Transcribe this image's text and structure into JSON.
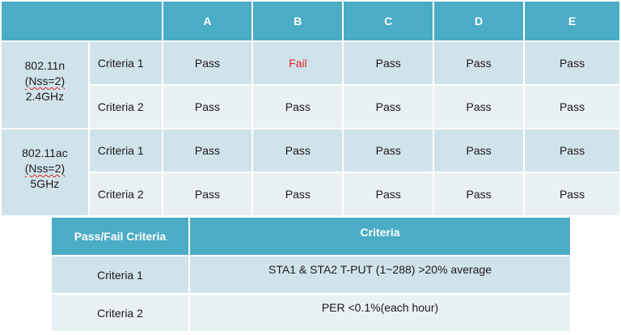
{
  "results": {
    "columns": [
      "A",
      "B",
      "C",
      "D",
      "E"
    ],
    "standards": [
      {
        "lines": [
          "802.11n",
          "(Nss=2)",
          "2.4GHz"
        ],
        "rows": [
          {
            "criteria": "Criteria 1",
            "values": [
              "Pass",
              "Fail",
              "Pass",
              "Pass",
              "Pass"
            ]
          },
          {
            "criteria": "Criteria 2",
            "values": [
              "Pass",
              "Pass",
              "Pass",
              "Pass",
              "Pass"
            ]
          }
        ]
      },
      {
        "lines": [
          "802.11ac",
          "(Nss=2)",
          "5GHz"
        ],
        "rows": [
          {
            "criteria": "Criteria 1",
            "values": [
              "Pass",
              "Pass",
              "Pass",
              "Pass",
              "Pass"
            ]
          },
          {
            "criteria": "Criteria 2",
            "values": [
              "Pass",
              "Pass",
              "Pass",
              "Pass",
              "Pass"
            ]
          }
        ]
      }
    ]
  },
  "criteria_table": {
    "header_left": "Pass/Fail Criteria",
    "header_right": "Criteria",
    "rows": [
      {
        "name": "Criteria 1",
        "description": "STA1 & STA2  T-PUT  (1~288) >20% average"
      },
      {
        "name": "Criteria 2",
        "description": "PER <0.1%(each hour)"
      }
    ]
  },
  "colors": {
    "header": "#4bacc6",
    "row_dark": "#d0e3ea",
    "row_light": "#e9f0f3",
    "fail_text": "#e8242a"
  }
}
